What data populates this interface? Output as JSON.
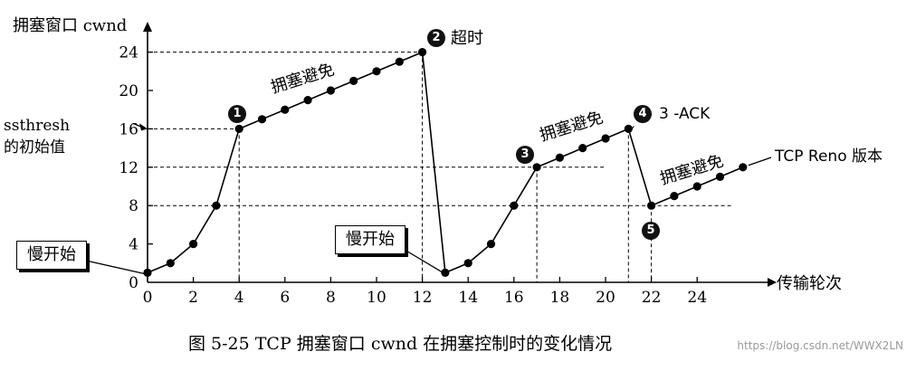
{
  "chart_data": {
    "type": "line",
    "ylabel": "拥塞窗口 cwnd",
    "xlabel": "传输轮次",
    "xlim": [
      0,
      28
    ],
    "ylim": [
      0,
      26
    ],
    "x_ticks": [
      0,
      2,
      4,
      6,
      8,
      10,
      12,
      14,
      16,
      18,
      20,
      22,
      24
    ],
    "y_ticks": [
      0,
      4,
      8,
      12,
      16,
      20,
      24
    ],
    "ssthresh_label": "ssthresh\n的初始值",
    "segments": [
      {
        "x": [
          0,
          1,
          2,
          3,
          4
        ],
        "y": [
          1,
          2,
          4,
          8,
          16
        ]
      },
      {
        "x": [
          4,
          5,
          6,
          7,
          8,
          9,
          10,
          11,
          12
        ],
        "y": [
          16,
          17,
          18,
          19,
          20,
          21,
          22,
          23,
          24
        ]
      },
      {
        "x": [
          12,
          13
        ],
        "y": [
          24,
          1
        ]
      },
      {
        "x": [
          13,
          14,
          15,
          16,
          17
        ],
        "y": [
          1,
          2,
          4,
          8,
          12
        ]
      },
      {
        "x": [
          17,
          18,
          19,
          20,
          21
        ],
        "y": [
          12,
          13,
          14,
          15,
          16
        ]
      },
      {
        "x": [
          21,
          22
        ],
        "y": [
          16,
          8
        ]
      },
      {
        "x": [
          22,
          23,
          24,
          25,
          26
        ],
        "y": [
          8,
          9,
          10,
          11,
          12
        ]
      }
    ],
    "reference_lines": [
      {
        "x": 4,
        "y": 16
      },
      {
        "x": 12,
        "y": 24
      },
      {
        "x": 17,
        "y": 12
      },
      {
        "x": 21,
        "y": 16
      },
      {
        "x": 22,
        "y": 8
      }
    ],
    "annotations": {
      "slow_start_1": "慢开始",
      "slow_start_2": "慢开始",
      "congestion_avoidance_1": "拥塞避免",
      "congestion_avoidance_2": "拥塞避免",
      "congestion_avoidance_3": "拥塞避免",
      "timeout": "超时",
      "three_ack": "3 -ACK",
      "reno": "TCP Reno 版本",
      "markers": [
        "1",
        "2",
        "3",
        "4",
        "5"
      ]
    }
  },
  "caption": "图 5-25    TCP 拥塞窗口 cwnd 在拥塞控制时的变化情况",
  "watermark": "https://blog.csdn.net/WWX2LN"
}
